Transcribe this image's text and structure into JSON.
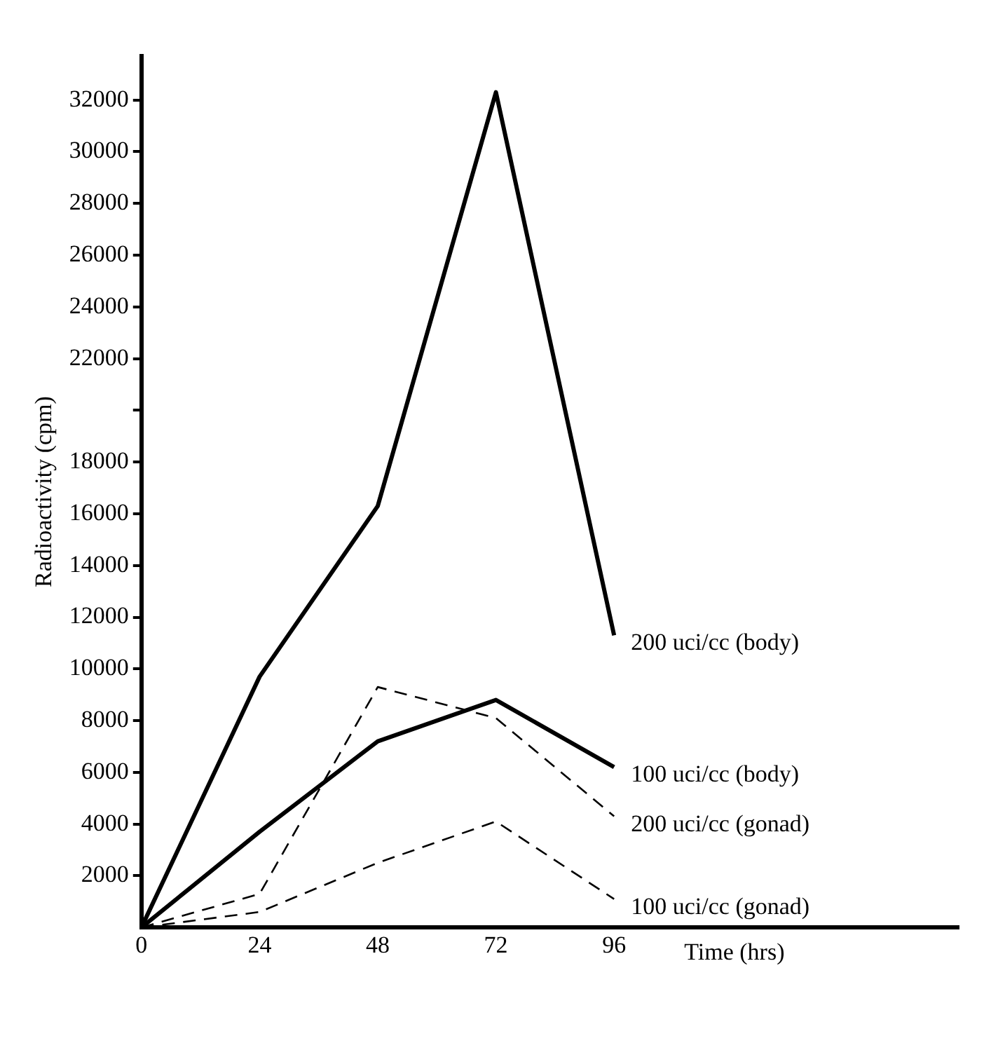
{
  "chart_data": {
    "type": "line",
    "xlabel": "Time (hrs)",
    "ylabel": "Radioactivity (cpm)",
    "x": [
      0,
      24,
      48,
      72,
      96
    ],
    "xlim": [
      0,
      166
    ],
    "xticks": [
      0,
      24,
      48,
      72,
      96
    ],
    "ylim": [
      0,
      33700
    ],
    "yticks": [
      2000,
      4000,
      6000,
      8000,
      10000,
      12000,
      14000,
      16000,
      18000,
      {
        "value": 20000,
        "label": null
      },
      22000,
      24000,
      26000,
      28000,
      30000,
      32000
    ],
    "grid": false,
    "legend": false,
    "marker": "none",
    "series": [
      {
        "name": "200 uci/cc (body)",
        "color": "#000000",
        "line_style": "solid",
        "values": [
          0,
          9700,
          16300,
          32300,
          11300
        ]
      },
      {
        "name": "100 uci/cc (body)",
        "color": "#000000",
        "line_style": "solid",
        "values": [
          0,
          3700,
          7200,
          8800,
          6200
        ]
      },
      {
        "name": "200 uci/cc (gonad)",
        "color": "#000000",
        "line_style": "dashed",
        "values": [
          0,
          1300,
          9300,
          8100,
          4300
        ]
      },
      {
        "name": "100 uci/cc (gonad)",
        "color": "#000000",
        "line_style": "dashed",
        "values": [
          0,
          600,
          2500,
          4100,
          1100
        ]
      }
    ]
  }
}
